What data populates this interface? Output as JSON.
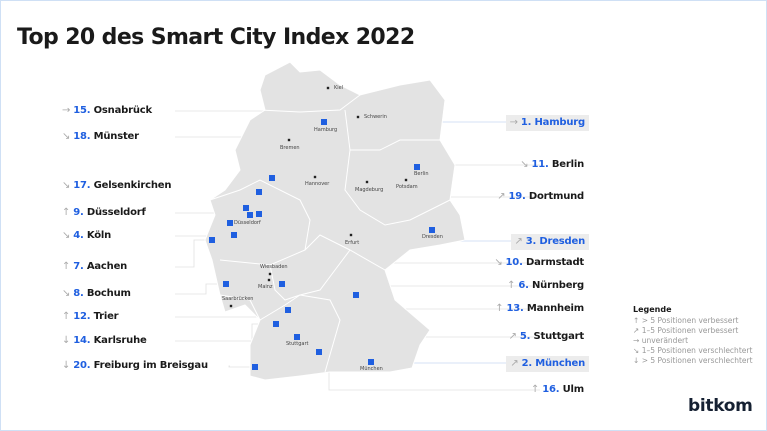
{
  "title": "Top 20 des Smart City Index 2022",
  "accent_color": "#1f5fe0",
  "left_labels": [
    {
      "rank": "15.",
      "city": "Osnabrück",
      "trend": "→"
    },
    {
      "rank": "18.",
      "city": "Münster",
      "trend": "↘"
    },
    {
      "rank": "17.",
      "city": "Gelsenkirchen",
      "trend": "↘"
    },
    {
      "rank": "9.",
      "city": "Düsseldorf",
      "trend": "↑"
    },
    {
      "rank": "4.",
      "city": "Köln",
      "trend": "↘"
    },
    {
      "rank": "7.",
      "city": "Aachen",
      "trend": "↑"
    },
    {
      "rank": "8.",
      "city": "Bochum",
      "trend": "↘"
    },
    {
      "rank": "12.",
      "city": "Trier",
      "trend": "↑"
    },
    {
      "rank": "14.",
      "city": "Karlsruhe",
      "trend": "↓"
    },
    {
      "rank": "20.",
      "city": "Freiburg im Breisgau",
      "trend": "↓"
    }
  ],
  "right_labels": [
    {
      "rank": "1.",
      "city": "Hamburg",
      "trend": "→",
      "highlight": true
    },
    {
      "rank": "11.",
      "city": "Berlin",
      "trend": "↘"
    },
    {
      "rank": "19.",
      "city": "Dortmund",
      "trend": "↗"
    },
    {
      "rank": "3.",
      "city": "Dresden",
      "trend": "↗",
      "highlight": true
    },
    {
      "rank": "10.",
      "city": "Darmstadt",
      "trend": "↘"
    },
    {
      "rank": "6.",
      "city": "Nürnberg",
      "trend": "↑"
    },
    {
      "rank": "13.",
      "city": "Mannheim",
      "trend": "↑"
    },
    {
      "rank": "5.",
      "city": "Stuttgart",
      "trend": "↗"
    },
    {
      "rank": "2.",
      "city": "München",
      "trend": "↗",
      "highlight": true
    },
    {
      "rank": "16.",
      "city": "Ulm",
      "trend": "↑"
    }
  ],
  "map_cities": [
    "Kiel",
    "Schwerin",
    "Hamburg",
    "Bremen",
    "Hannover",
    "Berlin",
    "Potsdam",
    "Magdeburg",
    "Düsseldorf",
    "Erfurt",
    "Dresden",
    "Wiesbaden",
    "Mainz",
    "Saarbrücken",
    "Stuttgart",
    "München"
  ],
  "legend": {
    "title": "Legende",
    "items": [
      {
        "icon": "↑",
        "text": "> 5 Positionen verbessert"
      },
      {
        "icon": "↗",
        "text": "1–5 Positionen verbessert"
      },
      {
        "icon": "→",
        "text": "unverändert"
      },
      {
        "icon": "↘",
        "text": "1–5 Positionen verschlechtert"
      },
      {
        "icon": "↓",
        "text": "> 5 Positionen verschlechtert"
      }
    ]
  },
  "logo": "bitkom"
}
